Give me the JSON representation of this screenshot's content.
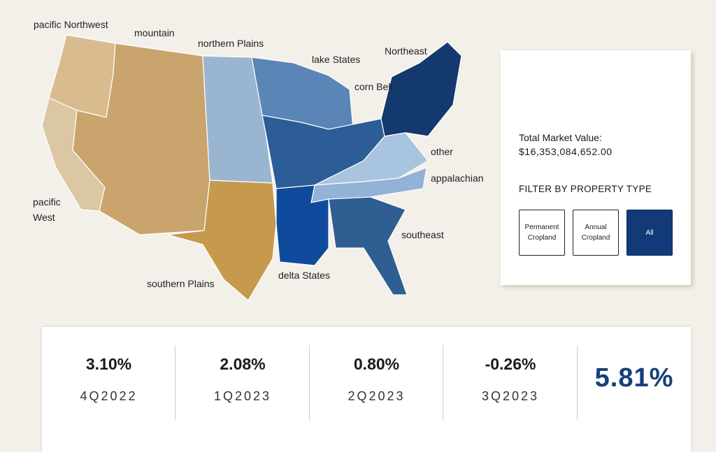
{
  "map": {
    "regions": [
      {
        "name": "pacific Northwest",
        "color": "#d9bc8e"
      },
      {
        "name": "pacific West",
        "color": "#dcc7a4"
      },
      {
        "name": "mountain",
        "color": "#c9a46c"
      },
      {
        "name": "northern Plains",
        "color": "#9ab5cf"
      },
      {
        "name": "southern Plains",
        "color": "#c59a4d"
      },
      {
        "name": "lake States",
        "color": "#5a85b6"
      },
      {
        "name": "corn Belt",
        "color": "#2d5d96"
      },
      {
        "name": "Northeast",
        "color": "#13396e"
      },
      {
        "name": "other",
        "color": "#a9c4df"
      },
      {
        "name": "appalachian",
        "color": "#92b3d6"
      },
      {
        "name": "delta States",
        "color": "#0f4a9d"
      },
      {
        "name": "southeast",
        "color": "#2f5e92"
      }
    ]
  },
  "panel": {
    "market_value_label": "Total Market Value:",
    "market_value": "$16,353,084,652.00",
    "filter_label": "FILTER BY PROPERTY TYPE",
    "filters": [
      {
        "label": "Permanent Cropland",
        "active": false
      },
      {
        "label": "Annual Cropland",
        "active": false
      },
      {
        "label": "All",
        "active": true
      }
    ]
  },
  "stats": {
    "quarters": [
      {
        "value": "3.10%",
        "period": "4Q2022"
      },
      {
        "value": "2.08%",
        "period": "1Q2023"
      },
      {
        "value": "0.80%",
        "period": "2Q2023"
      },
      {
        "value": "-0.26%",
        "period": "3Q2023"
      }
    ],
    "total": "5.81%"
  }
}
